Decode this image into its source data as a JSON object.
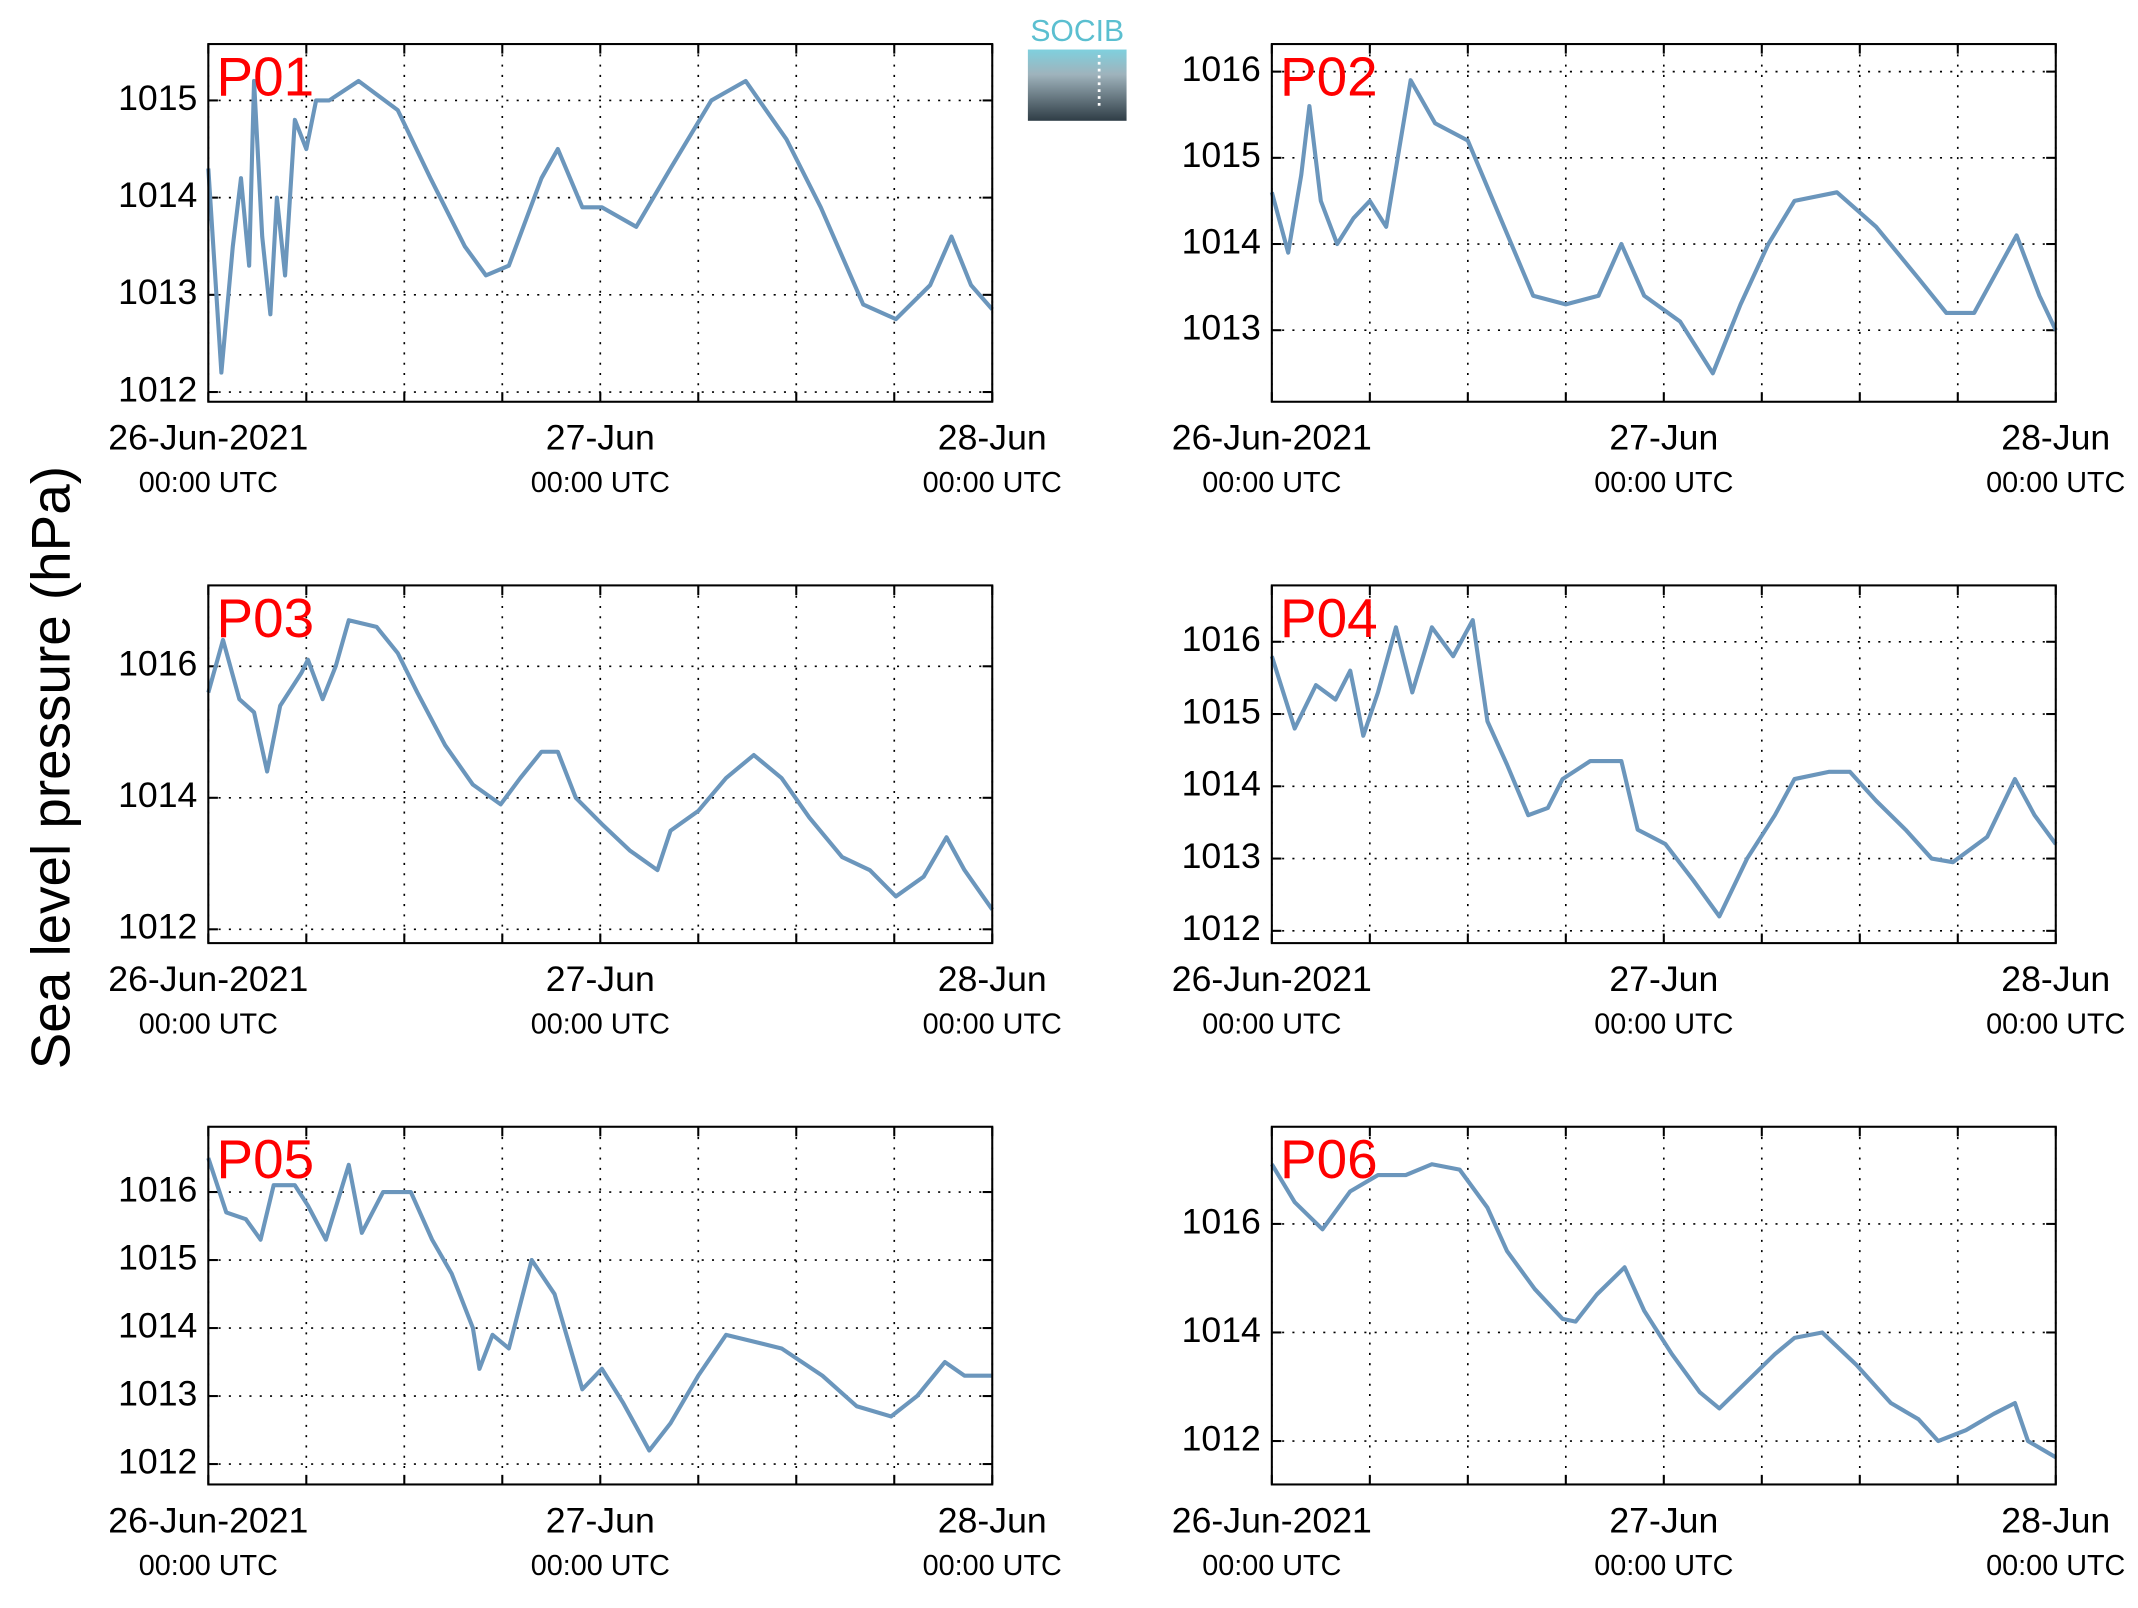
{
  "ylabel": "Sea level pressure (hPa)",
  "logo": "SOCIB",
  "chart_data": [
    {
      "type": "line",
      "title": "P01",
      "color": "#6b96bc",
      "grid": true,
      "x": [
        0,
        0.8,
        1.5,
        2,
        2.5,
        2.8,
        3.3,
        3.8,
        4.2,
        4.7,
        5.3,
        6,
        6.6,
        7.4,
        9.2,
        11.6,
        13.6,
        15.7,
        17,
        18.4,
        20.4,
        21.4,
        22.9,
        24.1,
        26.2,
        28.3,
        30.8,
        32.9,
        35.4,
        37.5,
        40.1,
        42.1,
        44.2,
        45.5,
        46.7,
        48
      ],
      "values": [
        1014.3,
        1012.2,
        1013.5,
        1014.2,
        1013.3,
        1015.2,
        1013.6,
        1012.8,
        1014.0,
        1013.2,
        1014.8,
        1014.5,
        1015.0,
        1015.0,
        1015.2,
        1014.9,
        1014.2,
        1013.5,
        1013.2,
        1013.3,
        1014.2,
        1014.5,
        1013.9,
        1013.9,
        1013.7,
        1014.3,
        1015.0,
        1015.2,
        1014.6,
        1013.9,
        1012.9,
        1012.75,
        1013.1,
        1013.6,
        1013.1,
        1012.85
      ],
      "xlim": [
        0,
        48
      ],
      "ylim": [
        1011.9,
        1015.58
      ],
      "xticks": [
        {
          "value": 0,
          "label": "26-Jun-2021\n00:00 UTC"
        },
        {
          "value": 24,
          "label": "27-Jun\n00:00 UTC"
        },
        {
          "value": 48,
          "label": "28-Jun\n00:00 UTC"
        }
      ],
      "xminor": [
        6,
        12,
        18,
        30,
        36,
        42
      ],
      "yticks": [
        1012,
        1013,
        1014,
        1015
      ]
    },
    {
      "type": "line",
      "title": "P02",
      "color": "#6b96bc",
      "grid": true,
      "x": [
        0,
        1,
        1.8,
        2.3,
        3,
        4,
        5,
        6,
        7,
        8.5,
        10,
        12,
        14,
        16,
        18,
        20,
        21.4,
        22.8,
        25,
        27,
        28.7,
        30.4,
        32,
        34.6,
        37,
        39.6,
        41.3,
        43,
        45.6,
        47,
        48
      ],
      "values": [
        1014.6,
        1013.9,
        1014.8,
        1015.6,
        1014.5,
        1014.0,
        1014.3,
        1014.5,
        1014.2,
        1015.9,
        1015.4,
        1015.2,
        1014.3,
        1013.4,
        1013.3,
        1013.4,
        1014.0,
        1013.4,
        1013.1,
        1012.5,
        1013.3,
        1014.0,
        1014.5,
        1014.6,
        1014.2,
        1013.6,
        1013.2,
        1013.2,
        1014.1,
        1013.4,
        1013.0
      ],
      "xlim": [
        0,
        48
      ],
      "ylim": [
        1012.17,
        1016.32
      ],
      "xticks": [
        {
          "value": 0,
          "label": "26-Jun-2021\n00:00 UTC"
        },
        {
          "value": 24,
          "label": "27-Jun\n00:00 UTC"
        },
        {
          "value": 48,
          "label": "28-Jun\n00:00 UTC"
        }
      ],
      "xminor": [
        6,
        12,
        18,
        30,
        36,
        42
      ],
      "yticks": [
        1013,
        1014,
        1015,
        1016
      ]
    },
    {
      "type": "line",
      "title": "P03",
      "color": "#6b96bc",
      "grid": true,
      "x": [
        0,
        0.9,
        1.9,
        2.8,
        3.6,
        4.4,
        5.7,
        6.1,
        7,
        7.8,
        8.6,
        10.3,
        11.6,
        12.8,
        14.5,
        16.2,
        17.9,
        19.1,
        20.4,
        21.4,
        22.5,
        24.1,
        25.8,
        27.5,
        28.3,
        30,
        31.7,
        33.4,
        35.1,
        36.8,
        38.8,
        40.5,
        42.1,
        43.8,
        45.2,
        46.3,
        48
      ],
      "values": [
        1015.6,
        1016.4,
        1015.5,
        1015.3,
        1014.4,
        1015.4,
        1015.9,
        1016.1,
        1015.5,
        1016.0,
        1016.7,
        1016.6,
        1016.2,
        1015.6,
        1014.8,
        1014.2,
        1013.9,
        1014.3,
        1014.7,
        1014.7,
        1014.0,
        1013.6,
        1013.2,
        1012.9,
        1013.5,
        1013.8,
        1014.3,
        1014.65,
        1014.3,
        1013.7,
        1013.1,
        1012.9,
        1012.5,
        1012.8,
        1013.4,
        1012.9,
        1012.3
      ],
      "xlim": [
        0,
        48
      ],
      "ylim": [
        1011.79,
        1017.23
      ],
      "xticks": [
        {
          "value": 0,
          "label": "26-Jun-2021\n00:00 UTC"
        },
        {
          "value": 24,
          "label": "27-Jun\n00:00 UTC"
        },
        {
          "value": 48,
          "label": "28-Jun\n00:00 UTC"
        }
      ],
      "xminor": [
        6,
        12,
        18,
        30,
        36,
        42
      ],
      "yticks": [
        1012,
        1014,
        1016
      ]
    },
    {
      "type": "line",
      "title": "P04",
      "color": "#6b96bc",
      "grid": true,
      "x": [
        0,
        1.4,
        2.7,
        3.9,
        4.8,
        5.6,
        6.5,
        7.6,
        8.6,
        9.8,
        11.1,
        12.3,
        13.2,
        14.4,
        15.7,
        16.9,
        17.8,
        19.5,
        21.4,
        22.4,
        24.1,
        25.8,
        27.4,
        29.1,
        30.8,
        32,
        34.1,
        35.4,
        37,
        38.8,
        40.4,
        41.7,
        43.8,
        45.5,
        46.7,
        48
      ],
      "values": [
        1015.8,
        1014.8,
        1015.4,
        1015.2,
        1015.6,
        1014.7,
        1015.3,
        1016.2,
        1015.3,
        1016.2,
        1015.8,
        1016.3,
        1014.9,
        1014.3,
        1013.6,
        1013.7,
        1014.1,
        1014.35,
        1014.35,
        1013.4,
        1013.2,
        1012.7,
        1012.2,
        1013.0,
        1013.6,
        1014.1,
        1014.2,
        1014.2,
        1013.8,
        1013.4,
        1013.0,
        1012.95,
        1013.3,
        1014.1,
        1013.6,
        1013.2
      ],
      "xlim": [
        0,
        48
      ],
      "ylim": [
        1011.83,
        1016.78
      ],
      "xticks": [
        {
          "value": 0,
          "label": "26-Jun-2021\n00:00 UTC"
        },
        {
          "value": 24,
          "label": "27-Jun\n00:00 UTC"
        },
        {
          "value": 48,
          "label": "28-Jun\n00:00 UTC"
        }
      ],
      "xminor": [
        6,
        12,
        18,
        30,
        36,
        42
      ],
      "yticks": [
        1012,
        1013,
        1014,
        1015,
        1016
      ]
    },
    {
      "type": "line",
      "title": "P05",
      "color": "#6b96bc",
      "grid": true,
      "x": [
        0,
        1.1,
        2.3,
        3.2,
        4,
        5.3,
        6.1,
        7.2,
        8.6,
        9.4,
        10.7,
        12.4,
        13.7,
        14.9,
        16.2,
        16.6,
        17.4,
        18.4,
        19.8,
        21.2,
        22.9,
        24.1,
        25.4,
        27,
        28.3,
        30,
        31.7,
        33.4,
        35.1,
        37.6,
        39.7,
        41.8,
        43.4,
        45.1,
        46.3,
        48
      ],
      "values": [
        1016.5,
        1015.7,
        1015.6,
        1015.3,
        1016.1,
        1016.1,
        1015.8,
        1015.3,
        1016.4,
        1015.4,
        1016.0,
        1016.0,
        1015.3,
        1014.8,
        1014.0,
        1013.4,
        1013.9,
        1013.7,
        1015.0,
        1014.5,
        1013.1,
        1013.4,
        1012.9,
        1012.2,
        1012.6,
        1013.3,
        1013.9,
        1013.8,
        1013.7,
        1013.3,
        1012.85,
        1012.7,
        1013.0,
        1013.5,
        1013.3,
        1013.3
      ],
      "xlim": [
        0,
        48
      ],
      "ylim": [
        1011.7,
        1016.96
      ],
      "xticks": [
        {
          "value": 0,
          "label": "26-Jun-2021\n00:00 UTC"
        },
        {
          "value": 24,
          "label": "27-Jun\n00:00 UTC"
        },
        {
          "value": 48,
          "label": "28-Jun\n00:00 UTC"
        }
      ],
      "xminor": [
        6,
        12,
        18,
        30,
        36,
        42
      ],
      "yticks": [
        1012,
        1013,
        1014,
        1015,
        1016
      ]
    },
    {
      "type": "line",
      "title": "P06",
      "color": "#6b96bc",
      "grid": true,
      "x": [
        0,
        1.4,
        3.1,
        4.8,
        6.5,
        8.2,
        9.8,
        11.5,
        13.2,
        14.4,
        16.1,
        17.8,
        18.6,
        19.9,
        21.6,
        22.8,
        24.5,
        26.2,
        27.4,
        29.1,
        30.8,
        32,
        33.7,
        35.8,
        37.9,
        39.6,
        40.8,
        42.5,
        44.2,
        45.5,
        46.3,
        48
      ],
      "values": [
        1017.1,
        1016.4,
        1015.9,
        1016.6,
        1016.9,
        1016.9,
        1017.1,
        1017.0,
        1016.3,
        1015.5,
        1014.8,
        1014.25,
        1014.2,
        1014.7,
        1015.2,
        1014.4,
        1013.6,
        1012.9,
        1012.6,
        1013.1,
        1013.6,
        1013.9,
        1014.0,
        1013.4,
        1012.7,
        1012.4,
        1012.0,
        1012.2,
        1012.5,
        1012.7,
        1012.0,
        1011.7
      ],
      "xlim": [
        0,
        48
      ],
      "ylim": [
        1011.2,
        1017.79
      ],
      "xticks": [
        {
          "value": 0,
          "label": "26-Jun-2021\n00:00 UTC"
        },
        {
          "value": 24,
          "label": "27-Jun\n00:00 UTC"
        },
        {
          "value": 48,
          "label": "28-Jun\n00:00 UTC"
        }
      ],
      "xminor": [
        6,
        12,
        18,
        30,
        36,
        42
      ],
      "yticks": [
        1012,
        1014,
        1016
      ]
    }
  ]
}
